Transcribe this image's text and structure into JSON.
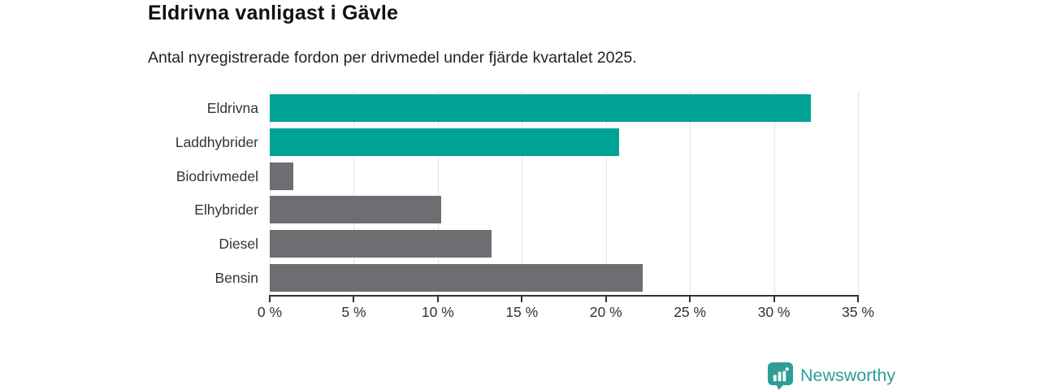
{
  "title": "Eldrivna vanligast i Gävle",
  "subtitle": "Antal nyregistrerade fordon per drivmedel under fjärde kvartalet 2025.",
  "colors": {
    "highlight": "#00a296",
    "muted": "#6e6e72",
    "axis": "#333333",
    "grid": "#e4e4e6",
    "brand": "#2d9d96"
  },
  "chart_data": {
    "type": "bar",
    "orientation": "horizontal",
    "title": "Eldrivna vanligast i Gävle",
    "subtitle": "Antal nyregistrerade fordon per drivmedel under fjärde kvartalet 2025.",
    "categories": [
      "Eldrivna",
      "Laddhybrider",
      "Biodrivmedel",
      "Elhybrider",
      "Diesel",
      "Bensin"
    ],
    "values": [
      32.2,
      20.8,
      1.4,
      10.2,
      13.2,
      22.2
    ],
    "unit": "%",
    "bar_colors": [
      "#00a296",
      "#00a296",
      "#6e6e72",
      "#6e6e72",
      "#6e6e72",
      "#6e6e72"
    ],
    "xlim": [
      0,
      35
    ],
    "ticks": [
      0,
      5,
      10,
      15,
      20,
      25,
      30,
      35
    ],
    "tick_labels": [
      "0 %",
      "5 %",
      "10 %",
      "15 %",
      "20 %",
      "25 %",
      "30 %",
      "35 %"
    ],
    "grid": true,
    "legend": false
  },
  "footer": {
    "brand": "Newsworthy"
  }
}
